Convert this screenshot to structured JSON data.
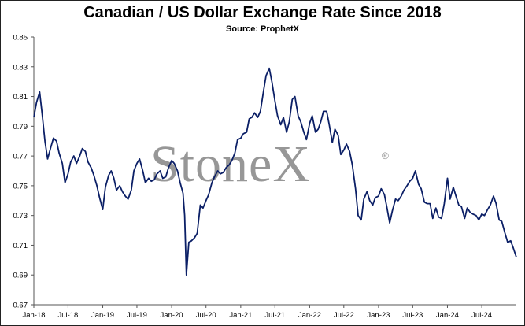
{
  "chart_data": {
    "type": "line",
    "title": "Canadian / US Dollar Exchange Rate Since 2018",
    "subtitle": "Source: ProphetX",
    "watermark": "StoneX",
    "watermark_mark": "®",
    "ylim": [
      0.67,
      0.85
    ],
    "yticks": [
      0.85,
      0.83,
      0.81,
      0.79,
      0.77,
      0.75,
      0.73,
      0.71,
      0.69,
      0.67
    ],
    "ytick_labels": [
      "0.85",
      "0.83",
      "0.81",
      "0.79",
      "0.77",
      "0.75",
      "0.73",
      "0.71",
      "0.69",
      "0.67"
    ],
    "xlim": [
      "2018-01-01",
      "2024-12-31"
    ],
    "xticks": [
      "2018-01-01",
      "2018-07-01",
      "2019-01-01",
      "2019-07-01",
      "2020-01-01",
      "2020-07-01",
      "2021-01-01",
      "2021-07-01",
      "2022-01-01",
      "2022-07-01",
      "2023-01-01",
      "2023-07-01",
      "2024-01-01",
      "2024-07-01"
    ],
    "xtick_labels": [
      "Jan-18",
      "Jul-18",
      "Jan-19",
      "Jul-19",
      "Jan-20",
      "Jul-20",
      "Jan-21",
      "Jul-21",
      "Jan-22",
      "Jul-22",
      "Jan-23",
      "Jul-23",
      "Jan-24",
      "Jul-24"
    ],
    "grid": false,
    "series": [
      {
        "color": "#0b1f66",
        "x": [
          "2018-01-01",
          "2018-01-15",
          "2018-02-01",
          "2018-02-15",
          "2018-03-01",
          "2018-03-15",
          "2018-04-01",
          "2018-04-15",
          "2018-05-01",
          "2018-05-15",
          "2018-06-01",
          "2018-06-15",
          "2018-07-01",
          "2018-07-15",
          "2018-08-01",
          "2018-08-15",
          "2018-09-01",
          "2018-09-15",
          "2018-10-01",
          "2018-10-15",
          "2018-11-01",
          "2018-11-15",
          "2018-12-01",
          "2018-12-15",
          "2019-01-01",
          "2019-01-15",
          "2019-02-01",
          "2019-02-15",
          "2019-03-01",
          "2019-03-15",
          "2019-04-01",
          "2019-04-15",
          "2019-05-01",
          "2019-05-15",
          "2019-06-01",
          "2019-06-15",
          "2019-07-01",
          "2019-07-15",
          "2019-08-01",
          "2019-08-15",
          "2019-09-01",
          "2019-09-15",
          "2019-10-01",
          "2019-10-15",
          "2019-11-01",
          "2019-11-15",
          "2019-12-01",
          "2019-12-15",
          "2020-01-01",
          "2020-01-15",
          "2020-02-01",
          "2020-02-15",
          "2020-03-01",
          "2020-03-10",
          "2020-03-19",
          "2020-04-01",
          "2020-04-15",
          "2020-05-01",
          "2020-05-15",
          "2020-06-01",
          "2020-06-15",
          "2020-07-01",
          "2020-07-15",
          "2020-08-01",
          "2020-08-15",
          "2020-09-01",
          "2020-09-15",
          "2020-10-01",
          "2020-10-15",
          "2020-11-01",
          "2020-11-15",
          "2020-12-01",
          "2020-12-15",
          "2021-01-01",
          "2021-01-15",
          "2021-02-01",
          "2021-02-15",
          "2021-03-01",
          "2021-03-15",
          "2021-04-01",
          "2021-04-15",
          "2021-05-01",
          "2021-05-15",
          "2021-06-01",
          "2021-06-15",
          "2021-07-01",
          "2021-07-15",
          "2021-08-01",
          "2021-08-15",
          "2021-09-01",
          "2021-09-15",
          "2021-10-01",
          "2021-10-15",
          "2021-11-01",
          "2021-11-15",
          "2021-12-01",
          "2021-12-15",
          "2022-01-01",
          "2022-01-15",
          "2022-02-01",
          "2022-02-15",
          "2022-03-01",
          "2022-03-15",
          "2022-04-01",
          "2022-04-15",
          "2022-05-01",
          "2022-05-15",
          "2022-06-01",
          "2022-06-15",
          "2022-07-01",
          "2022-07-15",
          "2022-08-01",
          "2022-08-15",
          "2022-09-01",
          "2022-09-15",
          "2022-10-01",
          "2022-10-15",
          "2022-11-01",
          "2022-11-15",
          "2022-12-01",
          "2022-12-15",
          "2023-01-01",
          "2023-01-15",
          "2023-02-01",
          "2023-02-15",
          "2023-03-01",
          "2023-03-15",
          "2023-04-01",
          "2023-04-15",
          "2023-05-01",
          "2023-05-15",
          "2023-06-01",
          "2023-06-15",
          "2023-07-01",
          "2023-07-15",
          "2023-08-01",
          "2023-08-15",
          "2023-09-01",
          "2023-09-15",
          "2023-10-01",
          "2023-10-15",
          "2023-11-01",
          "2023-11-15",
          "2023-12-01",
          "2023-12-15",
          "2024-01-01",
          "2024-01-15",
          "2024-02-01",
          "2024-02-15",
          "2024-03-01",
          "2024-03-15",
          "2024-04-01",
          "2024-04-15",
          "2024-05-01",
          "2024-05-15",
          "2024-06-01",
          "2024-06-15",
          "2024-07-01",
          "2024-07-15",
          "2024-08-01",
          "2024-08-15",
          "2024-09-01",
          "2024-09-15",
          "2024-10-01",
          "2024-10-15",
          "2024-11-01",
          "2024-11-15",
          "2024-12-01",
          "2024-12-15",
          "2024-12-31"
        ],
        "y": [
          0.796,
          0.806,
          0.813,
          0.797,
          0.78,
          0.768,
          0.776,
          0.782,
          0.78,
          0.772,
          0.765,
          0.752,
          0.758,
          0.766,
          0.77,
          0.765,
          0.77,
          0.775,
          0.773,
          0.766,
          0.762,
          0.757,
          0.75,
          0.742,
          0.734,
          0.749,
          0.757,
          0.76,
          0.755,
          0.747,
          0.75,
          0.746,
          0.743,
          0.741,
          0.747,
          0.76,
          0.765,
          0.768,
          0.76,
          0.752,
          0.755,
          0.753,
          0.754,
          0.758,
          0.76,
          0.755,
          0.756,
          0.762,
          0.767,
          0.765,
          0.76,
          0.752,
          0.745,
          0.73,
          0.69,
          0.712,
          0.713,
          0.715,
          0.718,
          0.737,
          0.735,
          0.74,
          0.744,
          0.752,
          0.756,
          0.76,
          0.758,
          0.759,
          0.762,
          0.764,
          0.767,
          0.772,
          0.781,
          0.782,
          0.785,
          0.786,
          0.795,
          0.796,
          0.799,
          0.796,
          0.8,
          0.813,
          0.824,
          0.829,
          0.82,
          0.807,
          0.797,
          0.791,
          0.796,
          0.786,
          0.793,
          0.808,
          0.81,
          0.797,
          0.793,
          0.786,
          0.781,
          0.792,
          0.797,
          0.786,
          0.788,
          0.793,
          0.8,
          0.8,
          0.791,
          0.779,
          0.788,
          0.784,
          0.771,
          0.774,
          0.778,
          0.773,
          0.764,
          0.748,
          0.73,
          0.727,
          0.741,
          0.746,
          0.74,
          0.737,
          0.742,
          0.743,
          0.748,
          0.744,
          0.735,
          0.725,
          0.733,
          0.741,
          0.74,
          0.743,
          0.747,
          0.75,
          0.753,
          0.755,
          0.76,
          0.751,
          0.748,
          0.739,
          0.738,
          0.738,
          0.728,
          0.735,
          0.729,
          0.728,
          0.738,
          0.755,
          0.741,
          0.749,
          0.743,
          0.737,
          0.736,
          0.728,
          0.735,
          0.732,
          0.731,
          0.73,
          0.727,
          0.731,
          0.73,
          0.734,
          0.737,
          0.743,
          0.738,
          0.727,
          0.726,
          0.718,
          0.712,
          0.713,
          0.708,
          0.702
        ]
      }
    ]
  }
}
